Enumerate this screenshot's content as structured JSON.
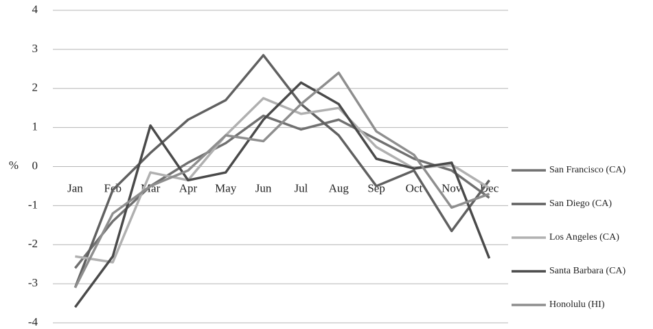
{
  "chart_data": {
    "type": "line",
    "y_label": "%",
    "categories": [
      "Jan",
      "Feb",
      "Mar",
      "Apr",
      "May",
      "Jun",
      "Jul",
      "Aug",
      "Sep",
      "Oct",
      "Nov",
      "Dec"
    ],
    "ylim": [
      -4,
      4
    ],
    "yticks": [
      -4,
      -3,
      -2,
      -1,
      0,
      1,
      2,
      3,
      4
    ],
    "grid": true,
    "legend": "right",
    "series": [
      {
        "name": "San Francisco (CA)",
        "color": "#707070",
        "values": [
          -2.6,
          -1.4,
          -0.5,
          0.1,
          0.6,
          1.3,
          0.95,
          1.2,
          0.7,
          0.2,
          -0.1,
          -0.8
        ]
      },
      {
        "name": "San Diego (CA)",
        "color": "#606060",
        "values": [
          -3.1,
          -0.6,
          0.35,
          1.2,
          1.7,
          2.85,
          1.6,
          0.8,
          -0.5,
          -0.1,
          -1.65,
          -0.35
        ]
      },
      {
        "name": "Los Angeles (CA)",
        "color": "#b0b0b0",
        "values": [
          -2.3,
          -2.45,
          -0.15,
          -0.35,
          0.8,
          1.75,
          1.35,
          1.5,
          0.5,
          -0.05,
          0.05,
          -0.55
        ]
      },
      {
        "name": "Santa Barbara (CA)",
        "color": "#4a4a4a",
        "values": [
          -3.6,
          -2.3,
          1.05,
          -0.35,
          -0.15,
          1.2,
          2.15,
          1.6,
          0.2,
          -0.05,
          0.1,
          -2.35
        ]
      },
      {
        "name": "Honolulu (HI)",
        "color": "#8e8e8e",
        "values": [
          -3.1,
          -1.2,
          -0.5,
          -0.1,
          0.8,
          0.65,
          1.6,
          2.4,
          0.9,
          0.3,
          -1.05,
          -0.7
        ]
      }
    ]
  }
}
